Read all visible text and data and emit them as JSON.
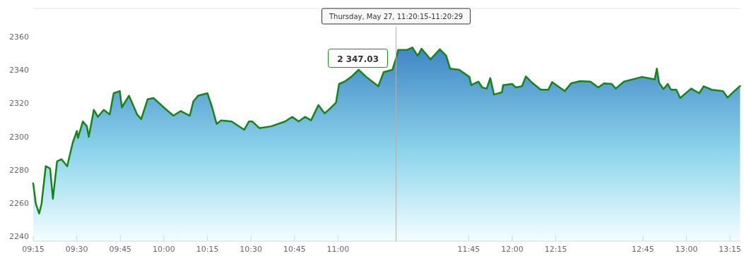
{
  "chart_data": {
    "type": "area",
    "x": [
      9.25,
      9.265,
      9.284,
      9.298,
      9.322,
      9.347,
      9.363,
      9.387,
      9.412,
      9.445,
      9.477,
      9.501,
      9.507,
      9.535,
      9.558,
      9.569,
      9.598,
      9.621,
      9.655,
      9.689,
      9.712,
      9.747,
      9.759,
      9.8,
      9.847,
      9.87,
      9.907,
      9.941,
      10.015,
      10.055,
      10.096,
      10.149,
      10.169,
      10.196,
      10.25,
      10.277,
      10.303,
      10.329,
      10.389,
      10.461,
      10.488,
      10.508,
      10.548,
      10.616,
      10.696,
      10.737,
      10.774,
      10.81,
      10.845,
      10.887,
      10.923,
      10.953,
      10.988,
      11.006,
      11.037,
      11.075,
      11.118,
      11.162,
      11.231,
      11.262,
      11.312,
      11.333,
      11.345,
      11.397,
      11.427,
      11.457,
      11.479,
      11.531,
      11.584,
      11.621,
      11.643,
      11.696,
      11.754,
      11.765,
      11.806,
      11.827,
      11.853,
      11.874,
      11.895,
      11.941,
      11.947,
      11.999,
      12.02,
      12.056,
      12.078,
      12.107,
      12.164,
      12.207,
      12.229,
      12.302,
      12.337,
      12.389,
      12.449,
      12.493,
      12.527,
      12.571,
      12.594,
      12.641,
      12.693,
      12.745,
      12.818,
      12.83,
      12.843,
      12.868,
      12.893,
      12.911,
      12.942,
      12.964,
      13.027,
      13.073,
      13.099,
      13.145,
      13.21,
      13.236,
      13.275,
      13.308
    ],
    "series": [
      {
        "color": "#168416",
        "values": [
          2271.8,
          2259.5,
          2253.6,
          2259.5,
          2282.1,
          2280.7,
          2262.5,
          2285,
          2286.3,
          2282.1,
          2296.3,
          2303.3,
          2299.1,
          2309,
          2306.1,
          2299.8,
          2316,
          2311.8,
          2316,
          2313.2,
          2326,
          2327.3,
          2317.5,
          2324.5,
          2313.2,
          2310.4,
          2322.4,
          2323.1,
          2316,
          2312.5,
          2315.3,
          2312.5,
          2321,
          2324.5,
          2326,
          2317.5,
          2307.5,
          2309.7,
          2309,
          2304,
          2309,
          2309,
          2305,
          2306.1,
          2309,
          2311.8,
          2309,
          2311.8,
          2309.7,
          2318.9,
          2313.9,
          2316.7,
          2320.3,
          2331.6,
          2333,
          2335.8,
          2340.1,
          2335.8,
          2330.2,
          2338.7,
          2340.1,
          2347.03,
          2352.1,
          2352.1,
          2353.5,
          2348.5,
          2352.8,
          2346.4,
          2352.5,
          2348.5,
          2340.8,
          2340.1,
          2335.8,
          2330.9,
          2333,
          2329.5,
          2328.8,
          2335.1,
          2325.2,
          2326.6,
          2330.9,
          2331.6,
          2329.5,
          2330.2,
          2336.1,
          2333,
          2328.1,
          2328.1,
          2332.7,
          2327.3,
          2331.9,
          2333.3,
          2333,
          2329.5,
          2331.9,
          2331.6,
          2328.8,
          2333,
          2334.4,
          2335.8,
          2334.4,
          2340.8,
          2332.3,
          2328.5,
          2331.6,
          2328.1,
          2328.1,
          2323.1,
          2328.8,
          2326,
          2330.2,
          2328.1,
          2327.3,
          2323.4,
          2327.3,
          2330.4
        ]
      }
    ],
    "xlim": [
      9.25,
      13.31
    ],
    "xticks": [
      {
        "value": 9.25,
        "label": "09:15"
      },
      {
        "value": 9.5,
        "label": "09:30"
      },
      {
        "value": 9.75,
        "label": "09:45"
      },
      {
        "value": 10,
        "label": "10:00"
      },
      {
        "value": 10.25,
        "label": "10:15"
      },
      {
        "value": 10.5,
        "label": "10:30"
      },
      {
        "value": 10.75,
        "label": "10:45"
      },
      {
        "value": 11,
        "label": "11:00"
      },
      {
        "value": 11.75,
        "label": "11:45"
      },
      {
        "value": 12,
        "label": "12:00"
      },
      {
        "value": 12.25,
        "label": "12:15"
      },
      {
        "value": 12.75,
        "label": "12:45"
      },
      {
        "value": 13,
        "label": "13:00"
      },
      {
        "value": 13.25,
        "label": "13:15"
      }
    ],
    "ylim": [
      2237,
      2377
    ],
    "yticks": [
      2240,
      2260,
      2280,
      2300,
      2320,
      2340,
      2360
    ],
    "annotations": [
      {
        "text": "2 347.03",
        "x": 11.333,
        "y": 2347.03
      },
      {
        "text": "Thursday, May 27, 11:20:15-11:20:29",
        "x": 11.333
      }
    ]
  }
}
